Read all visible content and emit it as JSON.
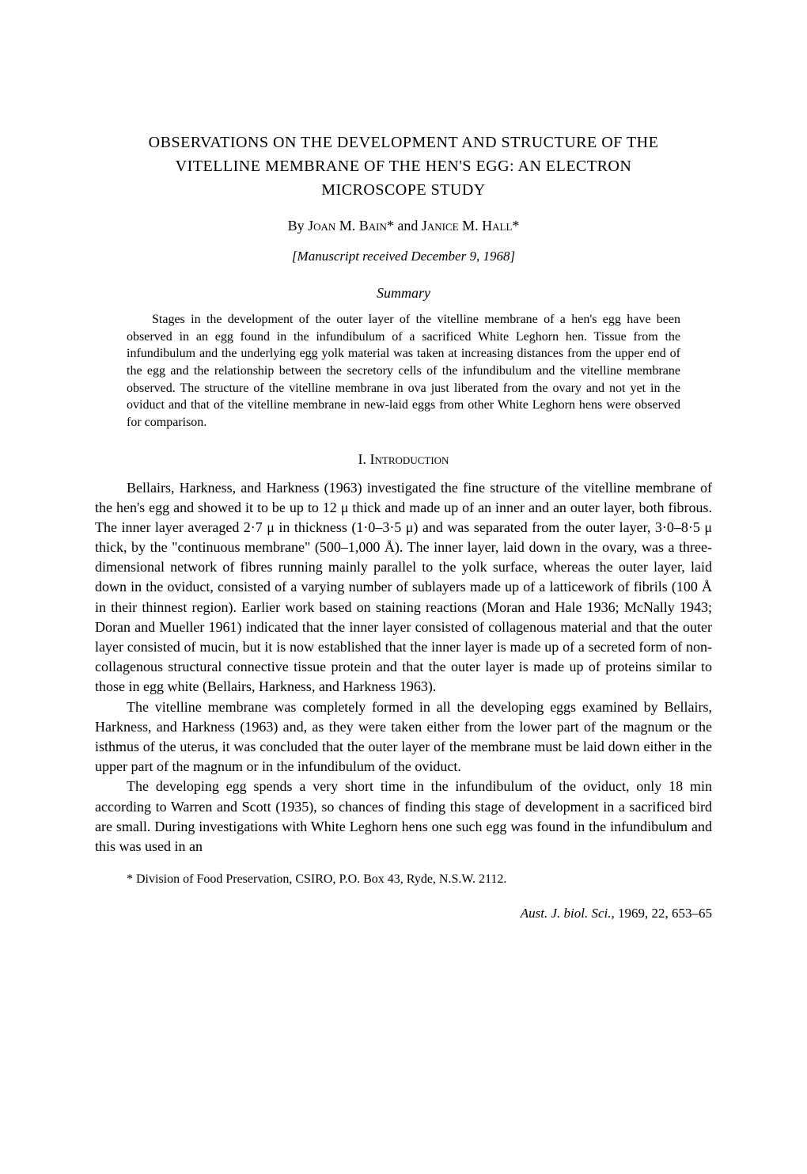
{
  "title": {
    "line1": "OBSERVATIONS ON THE DEVELOPMENT AND STRUCTURE OF THE",
    "line2": "VITELLINE MEMBRANE OF THE HEN'S EGG: AN ELECTRON",
    "line3": "MICROSCOPE STUDY"
  },
  "byline": {
    "by": "By ",
    "author1_first": "Joan",
    "author1_mid": " M. ",
    "author1_last": "Bain",
    "asterisk1": "*",
    "and": " and ",
    "author2_first": "Janice",
    "author2_mid": " M. ",
    "author2_last": "Hall",
    "asterisk2": "*"
  },
  "manuscript": "[Manuscript received December 9, 1968]",
  "summary_heading": "Summary",
  "summary_text": "Stages in the development of the outer layer of the vitelline membrane of a hen's egg have been observed in an egg found in the infundibulum of a sacrificed White Leghorn hen. Tissue from the infundibulum and the underlying egg yolk material was taken at increasing distances from the upper end of the egg and the relationship between the secretory cells of the infundibulum and the vitelline membrane observed. The structure of the vitelline membrane in ova just liberated from the ovary and not yet in the oviduct and that of the vitelline membrane in new-laid eggs from other White Leghorn hens were observed for comparison.",
  "section1": {
    "roman": "I. ",
    "heading": "Introduction"
  },
  "para1": "Bellairs, Harkness, and Harkness (1963) investigated the fine structure of the vitelline membrane of the hen's egg and showed it to be up to 12 μ thick and made up of an inner and an outer layer, both fibrous. The inner layer averaged 2·7 μ in thickness (1·0–3·5 μ) and was separated from the outer layer, 3·0–8·5 μ thick, by the \"continuous membrane\" (500–1,000 Å). The inner layer, laid down in the ovary, was a three-dimensional network of fibres running mainly parallel to the yolk surface, whereas the outer layer, laid down in the oviduct, consisted of a varying number of sublayers made up of a latticework of fibrils (100 Å in their thinnest region). Earlier work based on staining reactions (Moran and Hale 1936; McNally 1943; Doran and Mueller 1961) indicated that the inner layer consisted of collagenous material and that the outer layer consisted of mucin, but it is now established that the inner layer is made up of a secreted form of non-collagenous structural connective tissue protein and that the outer layer is made up of proteins similar to those in egg white (Bellairs, Harkness, and Harkness 1963).",
  "para2": "The vitelline membrane was completely formed in all the developing eggs examined by Bellairs, Harkness, and Harkness (1963) and, as they were taken either from the lower part of the magnum or the isthmus of the uterus, it was concluded that the outer layer of the membrane must be laid down either in the upper part of the magnum or in the infundibulum of the oviduct.",
  "para3": "The developing egg spends a very short time in the infundibulum of the oviduct, only 18 min according to Warren and Scott (1935), so chances of finding this stage of development in a sacrificed bird are small. During investigations with White Leghorn hens one such egg was found in the infundibulum and this was used in an",
  "footnote": "* Division of Food Preservation, CSIRO, P.O. Box 43, Ryde, N.S.W. 2112.",
  "journal": {
    "title": "Aust. J. biol. Sci.,",
    "rest": " 1969, 22, 653–65"
  }
}
